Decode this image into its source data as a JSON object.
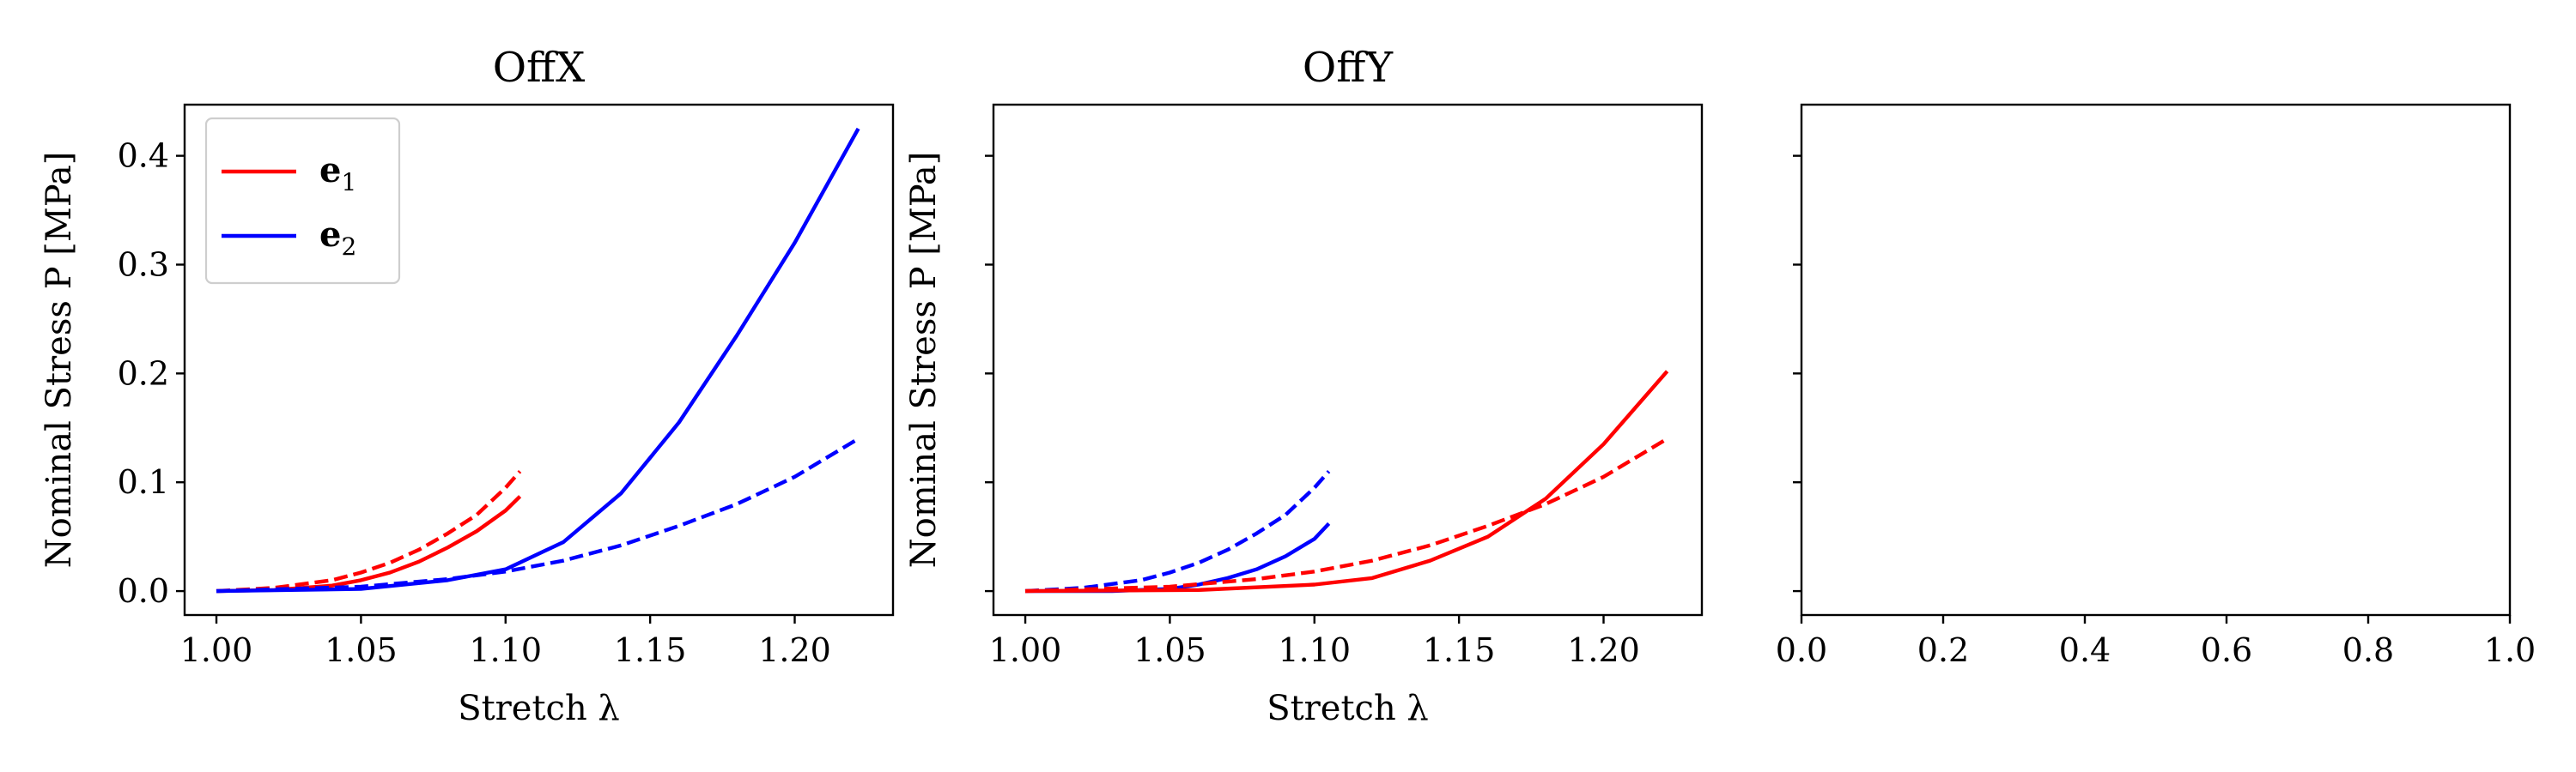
{
  "chart_data": [
    {
      "type": "line",
      "title": "OffX",
      "xlabel": "Stretch λ",
      "ylabel": "Nominal Stress P [MPa]",
      "xlim": [
        0.989,
        1.234
      ],
      "ylim": [
        -0.022,
        0.447
      ],
      "xticks": [
        "1.00",
        "1.05",
        "1.10",
        "1.15",
        "1.20"
      ],
      "xtick_values": [
        1.0,
        1.05,
        1.1,
        1.15,
        1.2
      ],
      "yticks": [
        "0.0",
        "0.1",
        "0.2",
        "0.3",
        "0.4"
      ],
      "ytick_values": [
        0.0,
        0.1,
        0.2,
        0.3,
        0.4
      ],
      "legend": {
        "placement": "top-left",
        "entries": [
          {
            "label": "e",
            "subscript": "1",
            "color": "#ff0000"
          },
          {
            "label": "e",
            "subscript": "2",
            "color": "#0000ff"
          }
        ]
      },
      "series": [
        {
          "color": "#ff0000",
          "style": "solid",
          "x": [
            1.0,
            1.02,
            1.04,
            1.05,
            1.06,
            1.07,
            1.08,
            1.09,
            1.1,
            1.105
          ],
          "y": [
            0.0,
            0.001,
            0.005,
            0.01,
            0.017,
            0.027,
            0.04,
            0.055,
            0.074,
            0.087
          ]
        },
        {
          "color": "#ff0000",
          "style": "dashed",
          "x": [
            1.0,
            1.02,
            1.04,
            1.05,
            1.06,
            1.07,
            1.08,
            1.09,
            1.1,
            1.105
          ],
          "y": [
            0.0,
            0.003,
            0.01,
            0.017,
            0.026,
            0.038,
            0.053,
            0.07,
            0.095,
            0.11
          ]
        },
        {
          "color": "#0000ff",
          "style": "solid",
          "x": [
            1.0,
            1.05,
            1.08,
            1.1,
            1.12,
            1.14,
            1.16,
            1.18,
            1.2,
            1.222
          ],
          "y": [
            0.0,
            0.002,
            0.01,
            0.02,
            0.045,
            0.09,
            0.155,
            0.235,
            0.32,
            0.425
          ]
        },
        {
          "color": "#0000ff",
          "style": "dashed",
          "x": [
            1.0,
            1.05,
            1.08,
            1.1,
            1.12,
            1.14,
            1.16,
            1.18,
            1.2,
            1.222
          ],
          "y": [
            0.0,
            0.004,
            0.011,
            0.018,
            0.028,
            0.042,
            0.06,
            0.08,
            0.105,
            0.14
          ]
        }
      ]
    },
    {
      "type": "line",
      "title": "OffY",
      "xlabel": "Stretch λ",
      "ylabel": "Nominal Stress P [MPa]",
      "xlim": [
        0.989,
        1.234
      ],
      "ylim": [
        -0.022,
        0.447
      ],
      "xticks": [
        "1.00",
        "1.05",
        "1.10",
        "1.15",
        "1.20"
      ],
      "xtick_values": [
        1.0,
        1.05,
        1.1,
        1.15,
        1.2
      ],
      "yticks": [
        "",
        "",
        "",
        "",
        ""
      ],
      "ytick_values": [
        0.0,
        0.1,
        0.2,
        0.3,
        0.4
      ],
      "series": [
        {
          "color": "#0000ff",
          "style": "solid",
          "x": [
            1.0,
            1.03,
            1.05,
            1.06,
            1.07,
            1.08,
            1.09,
            1.1,
            1.105
          ],
          "y": [
            0.0,
            0.0,
            0.002,
            0.006,
            0.012,
            0.02,
            0.032,
            0.048,
            0.062
          ]
        },
        {
          "color": "#0000ff",
          "style": "dashed",
          "x": [
            1.0,
            1.02,
            1.04,
            1.05,
            1.06,
            1.07,
            1.08,
            1.09,
            1.1,
            1.105
          ],
          "y": [
            0.0,
            0.003,
            0.01,
            0.017,
            0.026,
            0.038,
            0.053,
            0.07,
            0.095,
            0.11
          ]
        },
        {
          "color": "#ff0000",
          "style": "solid",
          "x": [
            1.0,
            1.06,
            1.1,
            1.12,
            1.14,
            1.16,
            1.18,
            1.2,
            1.222
          ],
          "y": [
            0.0,
            0.001,
            0.006,
            0.012,
            0.028,
            0.05,
            0.085,
            0.135,
            0.202
          ]
        },
        {
          "color": "#ff0000",
          "style": "dashed",
          "x": [
            1.0,
            1.05,
            1.08,
            1.1,
            1.12,
            1.14,
            1.16,
            1.18,
            1.2,
            1.222
          ],
          "y": [
            0.0,
            0.004,
            0.011,
            0.018,
            0.028,
            0.042,
            0.06,
            0.08,
            0.105,
            0.14
          ]
        }
      ]
    },
    {
      "type": "line",
      "title": "",
      "xlabel": "",
      "ylabel": "",
      "xlim": [
        0.0,
        1.0
      ],
      "ylim": [
        -0.022,
        0.447
      ],
      "xticks": [
        "0.0",
        "0.2",
        "0.4",
        "0.6",
        "0.8",
        "1.0"
      ],
      "xtick_values": [
        0.0,
        0.2,
        0.4,
        0.6,
        0.8,
        1.0
      ],
      "yticks": [
        "",
        "",
        "",
        "",
        ""
      ],
      "ytick_values": [
        0.0,
        0.1,
        0.2,
        0.3,
        0.4
      ],
      "series": []
    }
  ]
}
